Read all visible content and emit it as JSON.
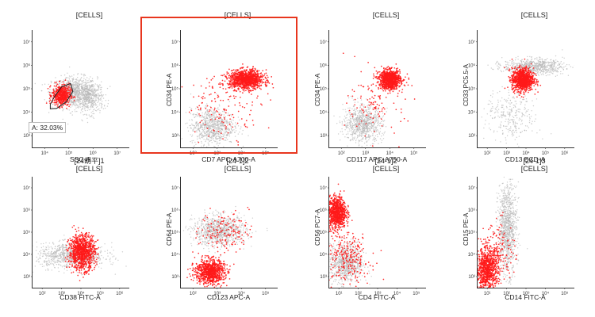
{
  "colors": {
    "gated": "#ff1a1a",
    "ungated": "#b8b8b8",
    "highlight": "#e8361e"
  },
  "chart_data": [
    {
      "type": "scatter",
      "title_lines": [
        "[CELLS]"
      ],
      "xlabel": "SSC-A",
      "ylabel": "",
      "xticks": [
        "10⁴",
        "10⁵",
        "10⁶",
        "10⁷"
      ],
      "yticks": [
        "10⁷",
        "10⁶",
        "10⁵",
        "10⁴",
        "10³"
      ],
      "xlim": [
        4,
        7
      ],
      "ylim": [
        2.6,
        7.1
      ],
      "gate": {
        "label": "A: 32.03%",
        "polygon": [
          [
            4.55,
            4.25
          ],
          [
            4.68,
            4.55
          ],
          [
            4.9,
            4.92
          ],
          [
            5.18,
            5.05
          ],
          [
            5.25,
            4.75
          ],
          [
            5.05,
            4.35
          ],
          [
            4.75,
            4.1
          ],
          [
            4.55,
            4.08
          ]
        ]
      },
      "clusters": [
        {
          "class": "ungated",
          "cx": 5.3,
          "cy": 4.7,
          "sx": 0.35,
          "sy": 0.3,
          "n": 900
        },
        {
          "class": "ungated",
          "cx": 5.8,
          "cy": 4.5,
          "sx": 0.2,
          "sy": 0.3,
          "n": 350
        },
        {
          "class": "gated",
          "cx": 4.9,
          "cy": 4.6,
          "sx": 0.14,
          "sy": 0.2,
          "n": 500
        }
      ]
    },
    {
      "type": "scatter",
      "title_lines": [
        "[CELLS]"
      ],
      "xlabel": "CD7 APC-A700-A",
      "ylabel": "CD34 PE-A",
      "xticks": [
        "10²",
        "10³",
        "10⁴",
        "10⁵"
      ],
      "yticks": [
        "10⁷",
        "10⁶",
        "10⁵",
        "10⁴",
        "10³"
      ],
      "xlim": [
        2,
        6
      ],
      "ylim": [
        2.6,
        7.1
      ],
      "clusters": [
        {
          "class": "ungated",
          "cx": 3.3,
          "cy": 3.4,
          "sx": 0.45,
          "sy": 0.35,
          "n": 800
        },
        {
          "class": "gated",
          "cx": 4.7,
          "cy": 5.2,
          "sx": 0.35,
          "sy": 0.18,
          "n": 1100
        },
        {
          "class": "gated",
          "cx": 3.8,
          "cy": 4.2,
          "sx": 0.8,
          "sy": 0.6,
          "n": 150
        }
      ]
    },
    {
      "type": "scatter",
      "title_lines": [
        "[CELLS]"
      ],
      "xlabel": "CD117 APC-A750-A",
      "ylabel": "CD34 PE-A",
      "xticks": [
        "10²",
        "10³",
        "10⁴",
        "10⁵"
      ],
      "yticks": [
        "10⁷",
        "10⁶",
        "10⁵",
        "10⁴",
        "10³"
      ],
      "xlim": [
        2,
        6
      ],
      "ylim": [
        2.6,
        7.1
      ],
      "clusters": [
        {
          "class": "ungated",
          "cx": 3.4,
          "cy": 3.5,
          "sx": 0.4,
          "sy": 0.35,
          "n": 800
        },
        {
          "class": "gated",
          "cx": 4.5,
          "cy": 5.2,
          "sx": 0.22,
          "sy": 0.18,
          "n": 1000
        },
        {
          "class": "gated",
          "cx": 4.0,
          "cy": 4.3,
          "sx": 0.6,
          "sy": 0.6,
          "n": 120
        }
      ]
    },
    {
      "type": "scatter",
      "title_lines": [
        "[CELLS]"
      ],
      "xlabel": "CD13 ECD-A",
      "ylabel": "CD33 PC5.5-A",
      "xticks": [
        "10²",
        "10³",
        "10⁴",
        "10⁵",
        "10⁶"
      ],
      "yticks": [
        "10⁷",
        "10⁶",
        "10⁵",
        "10⁴",
        "10³"
      ],
      "xlim": [
        2,
        6.5
      ],
      "ylim": [
        2.6,
        7.1
      ],
      "clusters": [
        {
          "class": "ungated",
          "cx": 4.6,
          "cy": 5.7,
          "sx": 0.7,
          "sy": 0.15,
          "n": 700
        },
        {
          "class": "ungated",
          "cx": 3.6,
          "cy": 3.8,
          "sx": 0.6,
          "sy": 0.5,
          "n": 300
        },
        {
          "class": "gated",
          "cx": 4.1,
          "cy": 5.2,
          "sx": 0.25,
          "sy": 0.22,
          "n": 1000
        }
      ]
    },
    {
      "type": "scatter",
      "title_lines": [
        "[24胡平]1",
        "[CELLS]"
      ],
      "xlabel": "CD38 FITC-A",
      "ylabel": "",
      "xticks": [
        "10²",
        "10³",
        "10⁴",
        "10⁵",
        "10⁶"
      ],
      "yticks": [
        "10⁷",
        "10⁶",
        "10⁵",
        "10⁴",
        "10³"
      ],
      "xlim": [
        2,
        6.5
      ],
      "ylim": [
        2.6,
        7.1
      ],
      "clusters": [
        {
          "class": "ungated",
          "cx": 3.8,
          "cy": 3.9,
          "sx": 0.8,
          "sy": 0.25,
          "n": 900
        },
        {
          "class": "gated",
          "cx": 4.3,
          "cy": 4.05,
          "sx": 0.3,
          "sy": 0.35,
          "n": 1000
        }
      ]
    },
    {
      "type": "scatter",
      "title_lines": [
        "[24-1]2",
        "[CELLS]"
      ],
      "xlabel": "CD123 APC-A",
      "ylabel": "CD64 PE-A",
      "xticks": [
        "10²",
        "10³",
        "10⁴",
        "10⁵"
      ],
      "yticks": [
        "10⁷",
        "10⁶",
        "10⁵",
        "10⁴",
        "10³"
      ],
      "xlim": [
        2,
        6
      ],
      "ylim": [
        2.6,
        7.1
      ],
      "clusters": [
        {
          "class": "ungated",
          "cx": 3.6,
          "cy": 4.9,
          "sx": 0.55,
          "sy": 0.3,
          "n": 900
        },
        {
          "class": "gated",
          "cx": 3.2,
          "cy": 3.25,
          "sx": 0.3,
          "sy": 0.25,
          "n": 900
        },
        {
          "class": "gated",
          "cx": 3.8,
          "cy": 4.9,
          "sx": 0.5,
          "sy": 0.4,
          "n": 150
        }
      ]
    },
    {
      "type": "scatter",
      "title_lines": [
        "[24-1]2",
        "[CELLS]"
      ],
      "xlabel": "CD4 FITC-A",
      "ylabel": "CD56 PC7-A",
      "xticks": [
        "10¹",
        "10²",
        "10³",
        "10⁴",
        "10⁵"
      ],
      "yticks": [
        "10⁷",
        "10⁶",
        "10⁵",
        "10⁴",
        "10³"
      ],
      "xlim": [
        0.8,
        6
      ],
      "ylim": [
        2.6,
        7.1
      ],
      "clusters": [
        {
          "class": "ungated",
          "cx": 1.7,
          "cy": 3.6,
          "sx": 0.45,
          "sy": 0.4,
          "n": 800
        },
        {
          "class": "gated",
          "cx": 1.2,
          "cy": 5.65,
          "sx": 0.25,
          "sy": 0.32,
          "n": 900
        },
        {
          "class": "gated",
          "cx": 1.8,
          "cy": 3.8,
          "sx": 0.6,
          "sy": 0.5,
          "n": 250
        }
      ]
    },
    {
      "type": "scatter",
      "title_lines": [
        "[24-1]3",
        "[CELLS]"
      ],
      "xlabel": "CD14 FITC-A",
      "ylabel": "CD15 PE-A",
      "xticks": [
        "10¹",
        "10²",
        "10³",
        "10⁴",
        "10⁵"
      ],
      "yticks": [
        "10⁷",
        "10⁶",
        "10⁵",
        "10⁴",
        "10³"
      ],
      "xlim": [
        0.8,
        6
      ],
      "ylim": [
        2.6,
        7.1
      ],
      "clusters": [
        {
          "class": "ungated",
          "cx": 2.4,
          "cy": 5.0,
          "sx": 0.25,
          "sy": 0.9,
          "n": 1000
        },
        {
          "class": "gated",
          "cx": 1.3,
          "cy": 3.3,
          "sx": 0.3,
          "sy": 0.45,
          "n": 900
        },
        {
          "class": "gated",
          "cx": 2.0,
          "cy": 4.1,
          "sx": 0.4,
          "sy": 0.6,
          "n": 150
        }
      ]
    }
  ]
}
